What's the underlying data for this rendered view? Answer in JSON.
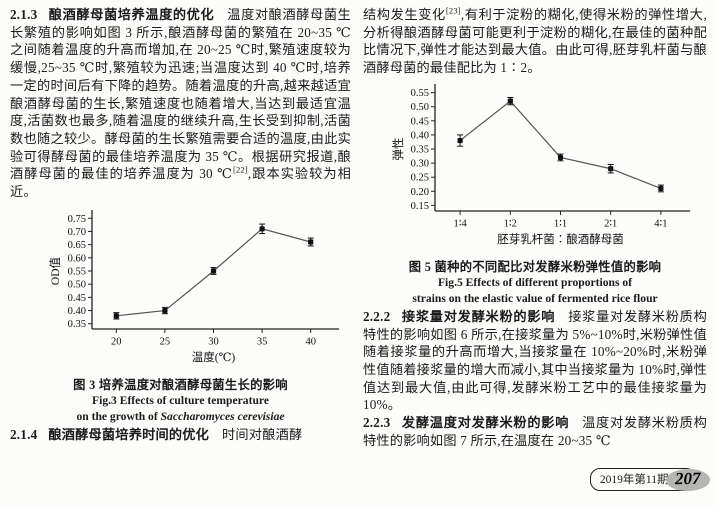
{
  "left_column": {
    "section_213": {
      "number": "2.1.3",
      "title": "酿酒酵母菌培养温度的优化",
      "body_before_cite": "温度对酿酒酵母菌生长繁殖的影响如图 3 所示,酿酒酵母菌的繁殖在 20~35 ℃之间随着温度的升高而增加,在 20~25 ℃时,繁殖速度较为缓慢,25~35 ℃时,繁殖较为迅速;当温度达到 40 ℃时,培养一定的时间后有下降的趋势。随着温度的升高,越来越适宜酿酒酵母菌的生长,繁殖速度也随着增大,当达到最适宜温度,活菌数也最多,随着温度的继续升高,生长受到抑制,活菌数也随之较少。酵母菌的生长繁殖需要合适的温度,由此实验可得酵母菌的最佳培养温度为 35 ℃。根据研究报道,酿酒酵母菌的最佳的培养温度为 30 ℃",
      "cite": "[22]",
      "body_after_cite": ",跟本实验较为相近。"
    },
    "figure3": {
      "caption_cn": "图 3  培养温度对酿酒酵母菌生长的影响",
      "caption_en_line1": "Fig.3  Effects of culture temperature",
      "caption_en_line2_prefix": "on the growth of ",
      "caption_en_line2_species": "Saccharomyces cerevisiae"
    },
    "section_214": {
      "number": "2.1.4",
      "title": "酿酒酵母菌培养时间的优化",
      "body": "时间对酿酒酵"
    }
  },
  "right_column": {
    "intro": {
      "body_before_cite": "结构发生变化",
      "cite": "[23]",
      "body_after_cite": ",有利于淀粉的糊化,使得米粉的弹性增大,分析得酿酒酵母菌可能更利于淀粉的糊化,在最佳的菌种配比情况下,弹性才能达到最大值。由此可得,胚芽乳杆菌与酿酒酵母菌的最佳配比为 1∶2。"
    },
    "figure5": {
      "caption_cn": "图 5  菌种的不同配比对发酵米粉弹性值的影响",
      "caption_en_line1": "Fig.5  Effects of different proportions of",
      "caption_en_line2": "strains on the elastic value of fermented rice flour"
    },
    "section_222": {
      "number": "2.2.2",
      "title": "接浆量对发酵米粉的影响",
      "body": "接浆量对发酵米粉质构特性的影响如图 6 所示,在接浆量为 5%~10%时,米粉弹性值随着接浆量的升高而增大,当接浆量在 10%~20%时,米粉弹性值随着接浆量的增大而减小,其中当接浆量为 10%时,弹性值达到最大值,由此可得,发酵米粉工艺中的最佳接浆量为 10%。"
    },
    "section_223": {
      "number": "2.2.3",
      "title": "发酵温度对发酵米粉的影响",
      "body": "温度对发酵米粉质构特性的影响如图 7 所示,在温度在 20~35 ℃"
    }
  },
  "footer": {
    "issue": "2019年第11期",
    "page_number": "207"
  },
  "colors": {
    "page_background": "#fcfcfa",
    "text": "#1b1b1b",
    "chart_line": "#555555",
    "chart_marker": "#111111",
    "page_badge_background": "#b5b5b3"
  },
  "chart_data": [
    {
      "type": "line",
      "figure": "图3",
      "title": "培养温度对酿酒酵母菌生长的影响",
      "x": [
        20,
        25,
        30,
        35,
        40
      ],
      "values": [
        0.38,
        0.4,
        0.55,
        0.71,
        0.66
      ],
      "error": [
        0.012,
        0.012,
        0.013,
        0.018,
        0.015
      ],
      "xlabel": "温度(℃)",
      "ylabel": "OD值",
      "xlim": [
        17.5,
        42.5
      ],
      "ylim": [
        0.33,
        0.77
      ],
      "xticks": [
        "20",
        "25",
        "30",
        "35",
        "40"
      ],
      "yticks": [
        "0.35",
        "0.40",
        "0.45",
        "0.50",
        "0.55",
        "0.60",
        "0.65",
        "0.70",
        "0.75"
      ],
      "grid": false,
      "legend": null,
      "marker": "square",
      "error_bars": true
    },
    {
      "type": "line",
      "figure": "图5",
      "title": "菌种的不同配比对发酵米粉弹性值的影响",
      "categories": [
        "1∶4",
        "1∶2",
        "1∶1",
        "2∶1",
        "4∶1"
      ],
      "values": [
        0.38,
        0.52,
        0.32,
        0.28,
        0.21
      ],
      "error": [
        0.02,
        0.013,
        0.012,
        0.015,
        0.012
      ],
      "xlabel": "胚芽乳杆菌∶酿酒酵母菌",
      "ylabel": "弹性",
      "ylim": [
        0.13,
        0.57
      ],
      "yticks": [
        "0.15",
        "0.20",
        "0.25",
        "0.30",
        "0.35",
        "0.40",
        "0.45",
        "0.50",
        "0.55"
      ],
      "grid": false,
      "legend": null,
      "marker": "square",
      "error_bars": true
    }
  ]
}
